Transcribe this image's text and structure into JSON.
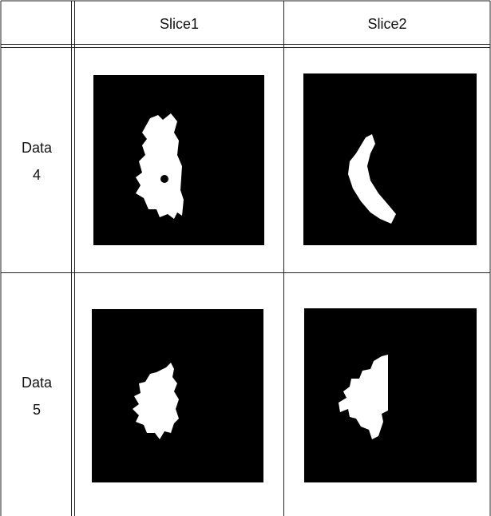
{
  "table": {
    "header": [
      "Slice1",
      "Slice2"
    ],
    "rows": [
      {
        "label": "Data 4"
      },
      {
        "label": "Data 5"
      }
    ]
  }
}
